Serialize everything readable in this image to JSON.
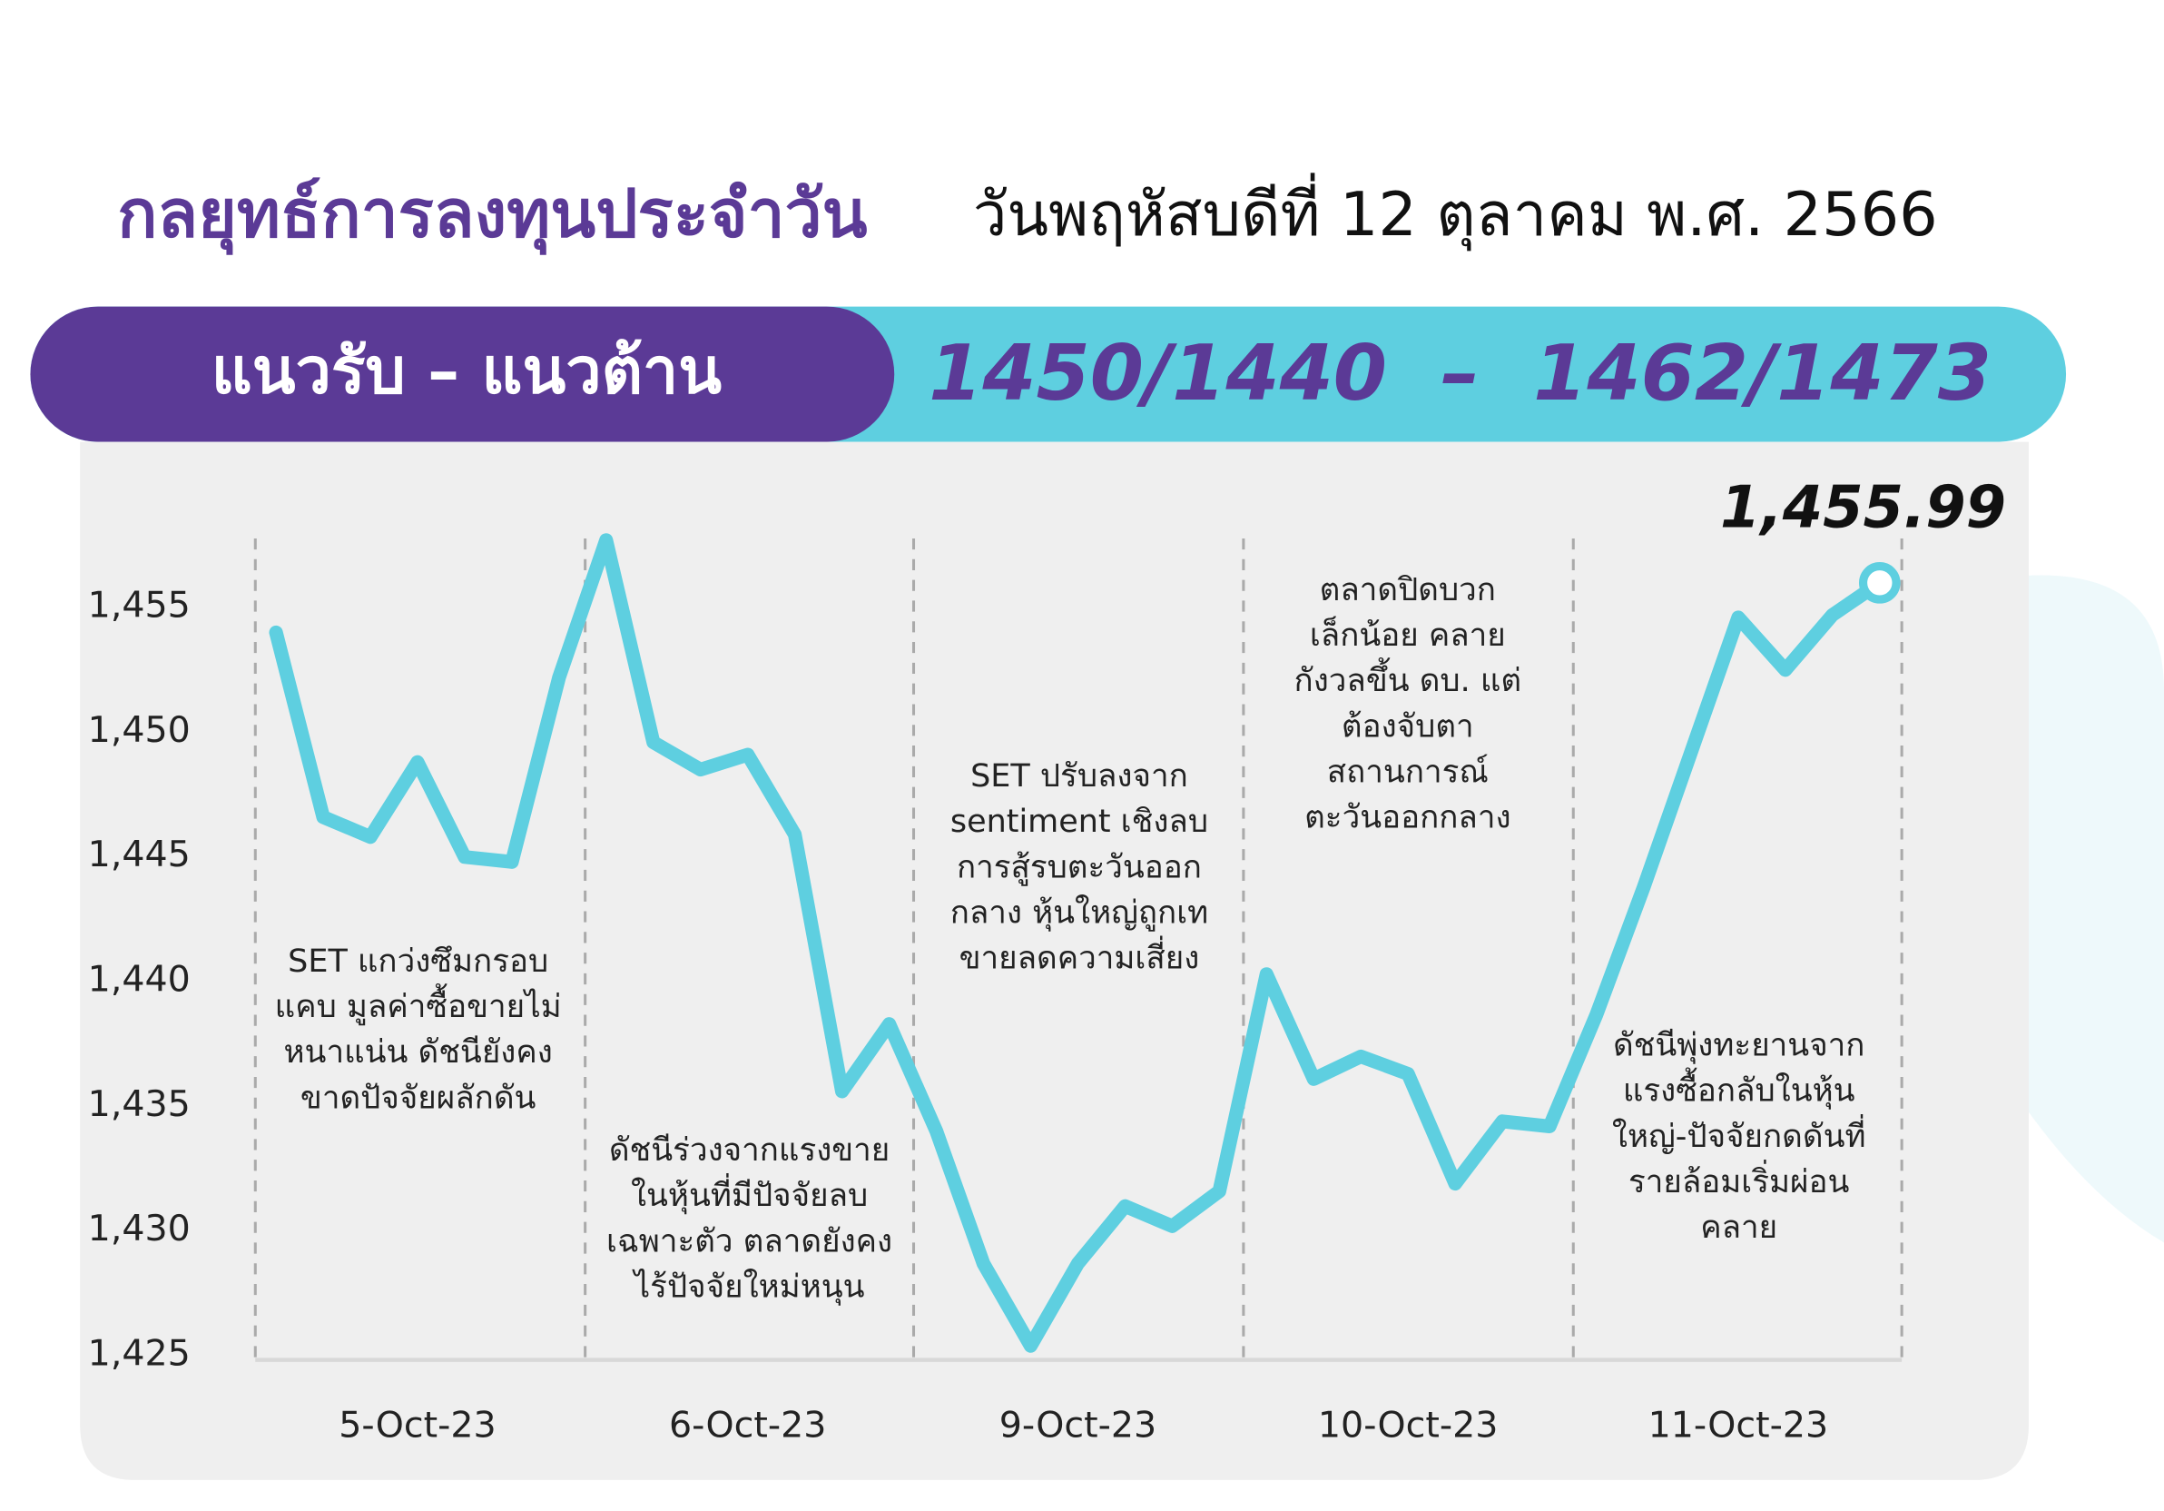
{
  "header": {
    "title": "กลยุทธ์การลงทุนประจำวัน",
    "date": "วันพฤหัสบดีที่ 12 ตุลาคม พ.ศ. 2566"
  },
  "banner": {
    "label": "แนวรับ – แนวต้าน",
    "levels": "1450/1440  –  1462/1473"
  },
  "chart_data": {
    "type": "line",
    "color": "#5ecfe0",
    "categories": [
      null,
      null,
      null,
      "5-Oct-23",
      null,
      null,
      null,
      null,
      null,
      null,
      "6-Oct-23",
      null,
      null,
      null,
      null,
      null,
      null,
      "9-Oct-23",
      null,
      null,
      null,
      null,
      null,
      null,
      "10-Oct-23",
      null,
      null,
      null,
      null,
      null,
      null,
      "11-Oct-23",
      null,
      null,
      null
    ],
    "values": [
      1454.0,
      1446.6,
      1445.8,
      1448.8,
      1445.0,
      1444.8,
      1452.2,
      1457.7,
      1449.6,
      1448.5,
      1449.1,
      1445.9,
      1435.6,
      1438.3,
      1434.0,
      1428.7,
      1425.4,
      1428.7,
      1431.0,
      1430.2,
      1431.6,
      1440.3,
      1436.1,
      1437.0,
      1436.3,
      1431.9,
      1434.4,
      1434.2,
      1438.7,
      1443.8,
      1449.2,
      1454.6,
      1452.5,
      1454.7,
      1455.99
    ],
    "value_labels": [
      null,
      null,
      null,
      null,
      null,
      null,
      null,
      null,
      null,
      null,
      null,
      null,
      null,
      null,
      null,
      null,
      null,
      null,
      null,
      null,
      null,
      null,
      null,
      null,
      null,
      null,
      null,
      null,
      null,
      null,
      null,
      null,
      null,
      null,
      "1,455.99"
    ],
    "ylim": [
      1425,
      1455
    ],
    "yticks": [
      {
        "value": 1425,
        "label": "1,425"
      },
      {
        "value": 1430,
        "label": "1,430"
      },
      {
        "value": 1435,
        "label": "1,435"
      },
      {
        "value": 1440,
        "label": "1,440"
      },
      {
        "value": 1445,
        "label": "1,445"
      },
      {
        "value": 1450,
        "label": "1,450"
      },
      {
        "value": 1455,
        "label": "1,455"
      }
    ],
    "annotations": [
      [
        "SET แกว่งซึมกรอบ",
        "แคบ มูลค่าซื้อขายไม่",
        "หนาแน่น ดัชนียังคง",
        "ขาดปัจจัยผลักดัน"
      ],
      [
        "ดัชนีร่วงจากแรงขาย",
        "ในหุ้นที่มีปัจจัยลบ",
        "เฉพาะตัว ตลาดยังคง",
        "ไร้ปัจจัยใหม่หนุน"
      ],
      [
        "SET ปรับลงจาก",
        "sentiment เชิงลบ",
        "การสู้รบตะวันออก",
        "กลาง หุ้นใหญ่ถูกเท",
        "ขายลดความเสี่ยง"
      ],
      [
        "ตลาดปิดบวก",
        "เล็กน้อย คลาย",
        "กังวลขึ้น ดบ. แต่",
        "ต้องจับตา",
        "สถานการณ์",
        "ตะวันออกกลาง"
      ],
      [
        "ดัชนีพุ่งทะยานจาก",
        "แรงซื้อกลับในหุ้น",
        "ใหญ่-ปัจจัยกดดันที่",
        "รายล้อมเริ่มผ่อน",
        "คลาย"
      ]
    ]
  }
}
